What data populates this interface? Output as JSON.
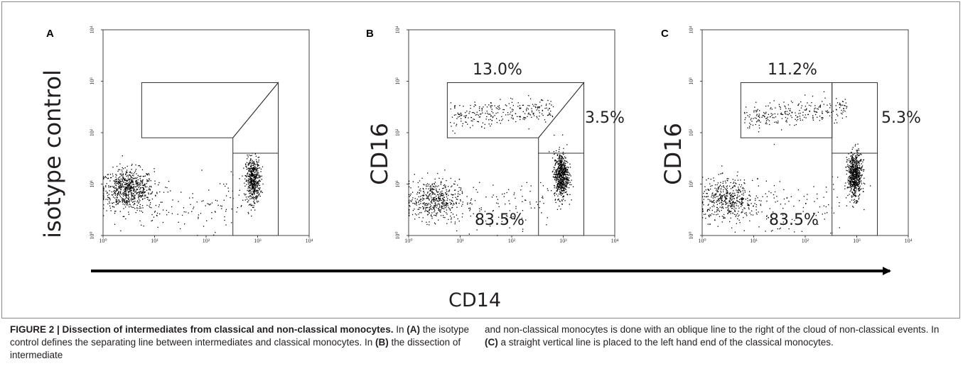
{
  "figure": {
    "x_axis_label": "CD14",
    "panels": [
      {
        "letter": "A",
        "ylabel": "isotype control",
        "gate_labels": [],
        "gates": "oblique"
      },
      {
        "letter": "B",
        "ylabel": "CD16",
        "gate_labels": [
          {
            "name": "gate-top",
            "text": "13.0%"
          },
          {
            "name": "gate-right",
            "text": "3.5%"
          },
          {
            "name": "gate-bottom",
            "text": "83.5%"
          }
        ],
        "gates": "oblique"
      },
      {
        "letter": "C",
        "ylabel": "CD16",
        "gate_labels": [
          {
            "name": "gate-top",
            "text": "11.2%"
          },
          {
            "name": "gate-right",
            "text": "5.3%"
          },
          {
            "name": "gate-bottom",
            "text": "83.5%"
          }
        ],
        "gates": "vertical"
      }
    ]
  },
  "chart_data": [
    {
      "type": "scatter",
      "title": "A",
      "xlabel": "",
      "ylabel": "isotype control",
      "xscale": "log",
      "yscale": "log",
      "xlim": [
        1,
        10000
      ],
      "ylim": [
        1,
        10000
      ],
      "x_ticks": [
        "10⁰",
        "10¹",
        "10²",
        "10³",
        "10⁴"
      ],
      "y_ticks": [
        "10⁰",
        "10¹",
        "10²",
        "10³",
        "10⁴"
      ],
      "clusters": [
        {
          "center": [
            3,
            8
          ],
          "count": 700
        },
        {
          "center": [
            800,
            12
          ],
          "count": 500
        }
      ],
      "annotations": []
    },
    {
      "type": "scatter",
      "title": "B",
      "xlabel": "",
      "ylabel": "CD16",
      "xscale": "log",
      "yscale": "log",
      "xlim": [
        1,
        10000
      ],
      "ylim": [
        1,
        10000
      ],
      "x_ticks": [
        "10⁰",
        "10¹",
        "10²",
        "10³",
        "10⁴"
      ],
      "y_ticks": [
        "10⁰",
        "10¹",
        "10²",
        "10³",
        "10⁴"
      ],
      "clusters": [
        {
          "center": [
            3,
            5
          ],
          "count": 450
        },
        {
          "center": [
            900,
            15
          ],
          "count": 650
        },
        {
          "center": [
            80,
            250
          ],
          "count": 260
        }
      ],
      "annotations": [
        "13.0%",
        "3.5%",
        "83.5%"
      ]
    },
    {
      "type": "scatter",
      "title": "C",
      "xlabel": "",
      "ylabel": "CD16",
      "xscale": "log",
      "yscale": "log",
      "xlim": [
        1,
        10000
      ],
      "ylim": [
        1,
        10000
      ],
      "x_ticks": [
        "10⁰",
        "10¹",
        "10²",
        "10³",
        "10⁴"
      ],
      "y_ticks": [
        "10⁰",
        "10¹",
        "10²",
        "10³",
        "10⁴"
      ],
      "clusters": [
        {
          "center": [
            3,
            5
          ],
          "count": 450
        },
        {
          "center": [
            900,
            15
          ],
          "count": 650
        },
        {
          "center": [
            80,
            250
          ],
          "count": 260
        }
      ],
      "annotations": [
        "11.2%",
        "5.3%",
        "83.5%"
      ]
    }
  ],
  "caption": {
    "title": "FIGURE 2 | Dissection of intermediates from classical and non-classical monocytes.",
    "segments_left": [
      {
        "text": " In ",
        "bold": false
      },
      {
        "text": "(A)",
        "bold": true
      },
      {
        "text": " the isotype control defines the separating line between intermediates and classical monocytes. In ",
        "bold": false
      },
      {
        "text": "(B)",
        "bold": true
      },
      {
        "text": " the dissection of intermediate",
        "bold": false
      }
    ],
    "segments_right": [
      {
        "text": "and non-classical monocytes is done with an oblique line to the right of the cloud of non-classical events. In ",
        "bold": false
      },
      {
        "text": "(C)",
        "bold": true
      },
      {
        "text": " a straight vertical line is placed to the left hand end of the classical monocytes.",
        "bold": false
      }
    ]
  }
}
